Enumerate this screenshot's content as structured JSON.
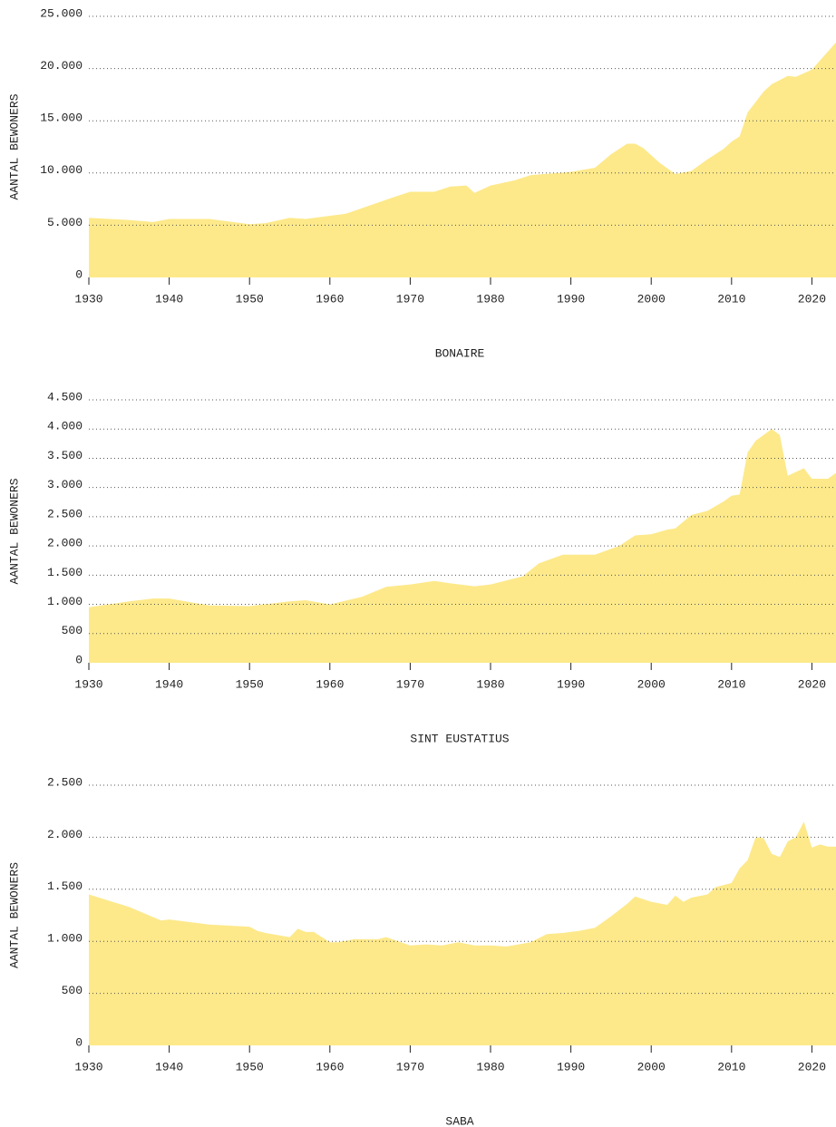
{
  "chart_data": [
    {
      "type": "area",
      "title": "BONAIRE",
      "y_label": "AANTAL BEWONERS",
      "color": "#fde98a",
      "grid": true,
      "x": [
        1930,
        1935,
        1938,
        1940,
        1945,
        1950,
        1952,
        1955,
        1957,
        1960,
        1962,
        1965,
        1968,
        1970,
        1973,
        1975,
        1977,
        1978,
        1980,
        1983,
        1985,
        1990,
        1993,
        1995,
        1997,
        1998,
        1999,
        2001,
        2003,
        2005,
        2007,
        2009,
        2010,
        2011,
        2012,
        2014,
        2015,
        2017,
        2018,
        2020,
        2023
      ],
      "values": [
        5700,
        5500,
        5300,
        5600,
        5600,
        5100,
        5200,
        5700,
        5600,
        5900,
        6100,
        6900,
        7700,
        8200,
        8200,
        8700,
        8800,
        8100,
        8800,
        9300,
        9800,
        10100,
        10500,
        11800,
        12800,
        12800,
        12400,
        11000,
        9900,
        10200,
        11300,
        12300,
        13000,
        13500,
        15800,
        17800,
        18500,
        19300,
        19200,
        19900,
        22500
      ],
      "xlim": [
        1930,
        2023
      ],
      "xticks": [
        1930,
        1940,
        1950,
        1960,
        1970,
        1980,
        1990,
        2000,
        2010,
        2020
      ],
      "ylim": [
        0,
        25000
      ],
      "yticks": [
        0,
        {
          "value": 5000,
          "label": "5.000"
        },
        {
          "value": 10000,
          "label": "10.000"
        },
        {
          "value": 15000,
          "label": "15.000"
        },
        {
          "value": 20000,
          "label": "20.000"
        },
        {
          "value": 25000,
          "label": "25.000"
        }
      ]
    },
    {
      "type": "area",
      "title": "SINT EUSTATIUS",
      "y_label": "AANTAL BEWONERS",
      "color": "#fde98a",
      "grid": true,
      "x": [
        1930,
        1935,
        1938,
        1940,
        1945,
        1950,
        1955,
        1957,
        1960,
        1964,
        1967,
        1970,
        1973,
        1975,
        1978,
        1980,
        1984,
        1986,
        1989,
        1993,
        1996,
        1998,
        2000,
        2002,
        2003,
        2005,
        2007,
        2009,
        2010,
        2011,
        2012,
        2013,
        2015,
        2016,
        2017,
        2019,
        2020,
        2022,
        2023
      ],
      "values": [
        950,
        1050,
        1100,
        1100,
        980,
        970,
        1050,
        1070,
        1000,
        1130,
        1300,
        1340,
        1400,
        1360,
        1310,
        1340,
        1480,
        1700,
        1850,
        1850,
        2000,
        2180,
        2200,
        2280,
        2300,
        2530,
        2600,
        2760,
        2860,
        2880,
        3600,
        3800,
        4000,
        3900,
        3200,
        3330,
        3150,
        3150,
        3250
      ],
      "xlim": [
        1930,
        2023
      ],
      "xticks": [
        1930,
        1940,
        1950,
        1960,
        1970,
        1980,
        1990,
        2000,
        2010,
        2020
      ],
      "ylim": [
        0,
        4500
      ],
      "yticks": [
        0,
        500,
        {
          "value": 1000,
          "label": "1.000"
        },
        {
          "value": 1500,
          "label": "1.500"
        },
        {
          "value": 2000,
          "label": "2.000"
        },
        {
          "value": 2500,
          "label": "2.500"
        },
        {
          "value": 3000,
          "label": "3.000"
        },
        {
          "value": 3500,
          "label": "3.500"
        },
        {
          "value": 4000,
          "label": "4.000"
        },
        {
          "value": 4500,
          "label": "4.500"
        }
      ]
    },
    {
      "type": "area",
      "title": "SABA",
      "y_label": "AANTAL BEWONERS",
      "color": "#fde98a",
      "grid": true,
      "x": [
        1930,
        1935,
        1939,
        1940,
        1945,
        1950,
        1951,
        1952,
        1955,
        1956,
        1957,
        1958,
        1960,
        1961,
        1963,
        1966,
        1967,
        1970,
        1972,
        1974,
        1976,
        1978,
        1980,
        1982,
        1985,
        1987,
        1989,
        1991,
        1993,
        1995,
        1997,
        1998,
        2000,
        2002,
        2003,
        2004,
        2005,
        2007,
        2008,
        2010,
        2011,
        2012,
        2013,
        2014,
        2015,
        2016,
        2017,
        2018,
        2019,
        2020,
        2021,
        2022,
        2023
      ],
      "values": [
        1450,
        1330,
        1200,
        1210,
        1160,
        1140,
        1100,
        1080,
        1040,
        1120,
        1090,
        1090,
        990,
        990,
        1020,
        1020,
        1040,
        960,
        970,
        960,
        990,
        960,
        960,
        950,
        990,
        1070,
        1080,
        1100,
        1130,
        1240,
        1360,
        1430,
        1380,
        1350,
        1440,
        1380,
        1420,
        1450,
        1520,
        1560,
        1700,
        1780,
        2000,
        1990,
        1840,
        1810,
        1960,
        2000,
        2150,
        1900,
        1930,
        1910,
        1910
      ],
      "xlim": [
        1930,
        2023
      ],
      "xticks": [
        1930,
        1940,
        1950,
        1960,
        1970,
        1980,
        1990,
        2000,
        2010,
        2020
      ],
      "ylim": [
        0,
        2500
      ],
      "yticks": [
        0,
        500,
        {
          "value": 1000,
          "label": "1.000"
        },
        {
          "value": 1500,
          "label": "1.500"
        },
        {
          "value": 2000,
          "label": "2.000"
        },
        {
          "value": 2500,
          "label": "2.500"
        }
      ]
    }
  ]
}
